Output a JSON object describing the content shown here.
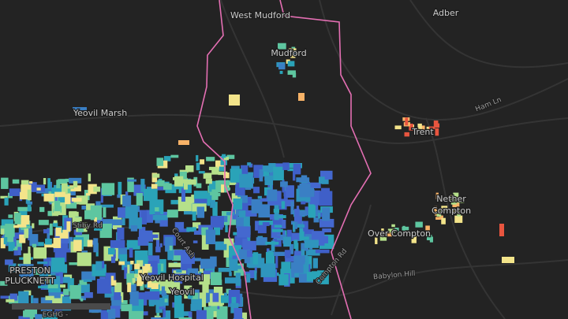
{
  "places": [
    "West Mudford",
    "Adber",
    "Mudford",
    "Yeovil Marsh",
    "Trent",
    "Nether",
    "Compton",
    "Over Compton",
    "PRESTON",
    "PLUCKNETT",
    "Yeovil Hospital",
    "Yeovil"
  ],
  "roads": [
    "Ham Ln",
    "Stiby Rd",
    "Court Ash",
    "Compton Rd",
    "Babylon Hill"
  ],
  "scale": "EGHG -"
}
